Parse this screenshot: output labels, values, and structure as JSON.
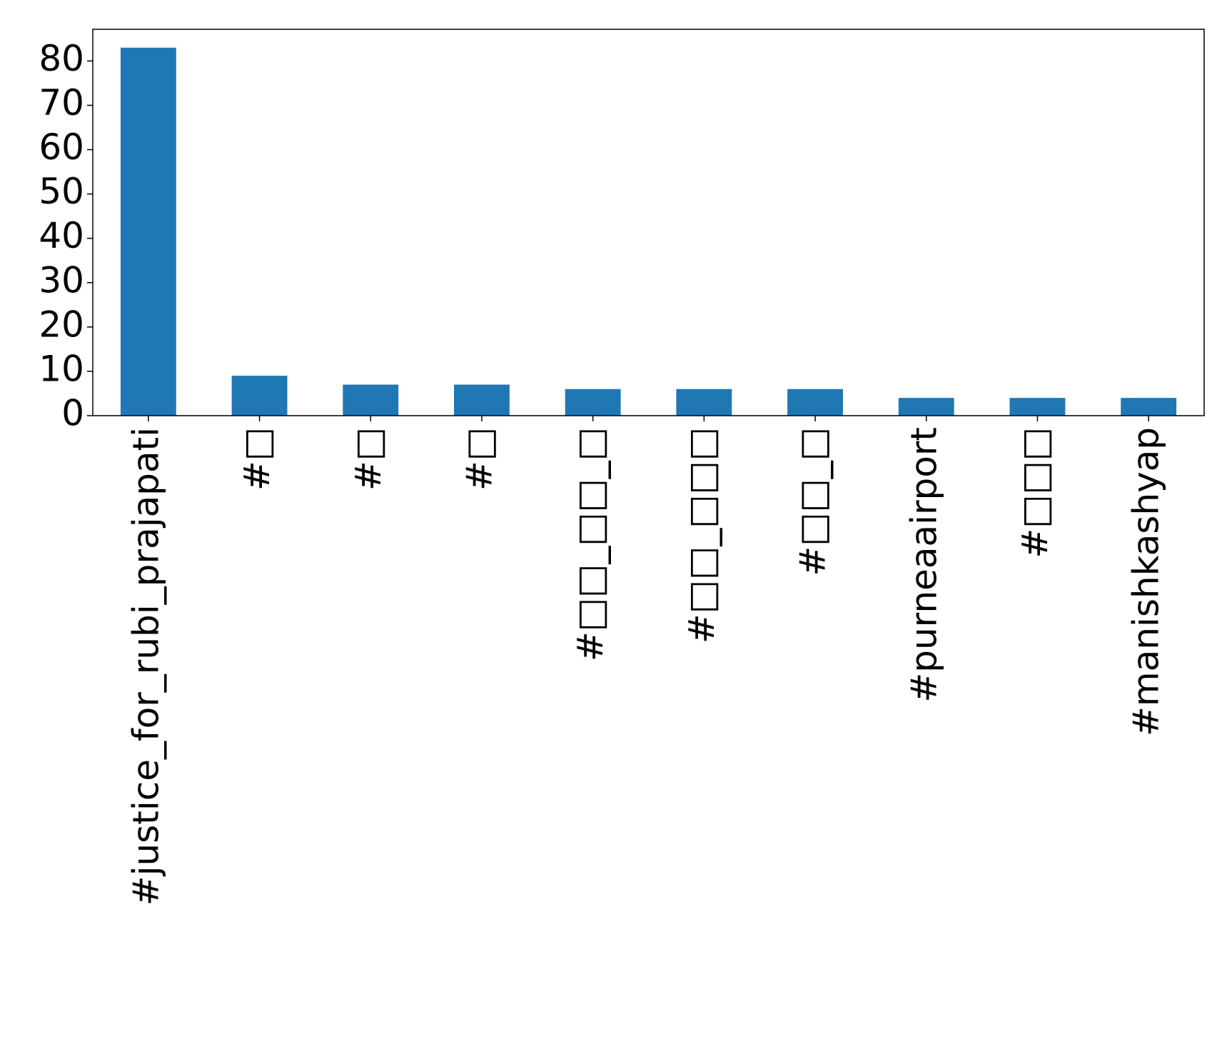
{
  "chart_data": {
    "type": "bar",
    "categories": [
      "#justice_for_rubi_prajapati",
      "#□",
      "#□",
      "#□",
      "#□□_□□_□",
      "#□□_□□□",
      "#□□_□",
      "#purneaairport",
      "#□□□",
      "#manishkashyap"
    ],
    "values": [
      83,
      9,
      7,
      7,
      6,
      6,
      6,
      4,
      4,
      4
    ],
    "color": "#1f77b4",
    "ylim": [
      0,
      87.15
    ],
    "yticks": [
      0,
      10,
      20,
      30,
      40,
      50,
      60,
      70,
      80
    ],
    "grid": false
  }
}
